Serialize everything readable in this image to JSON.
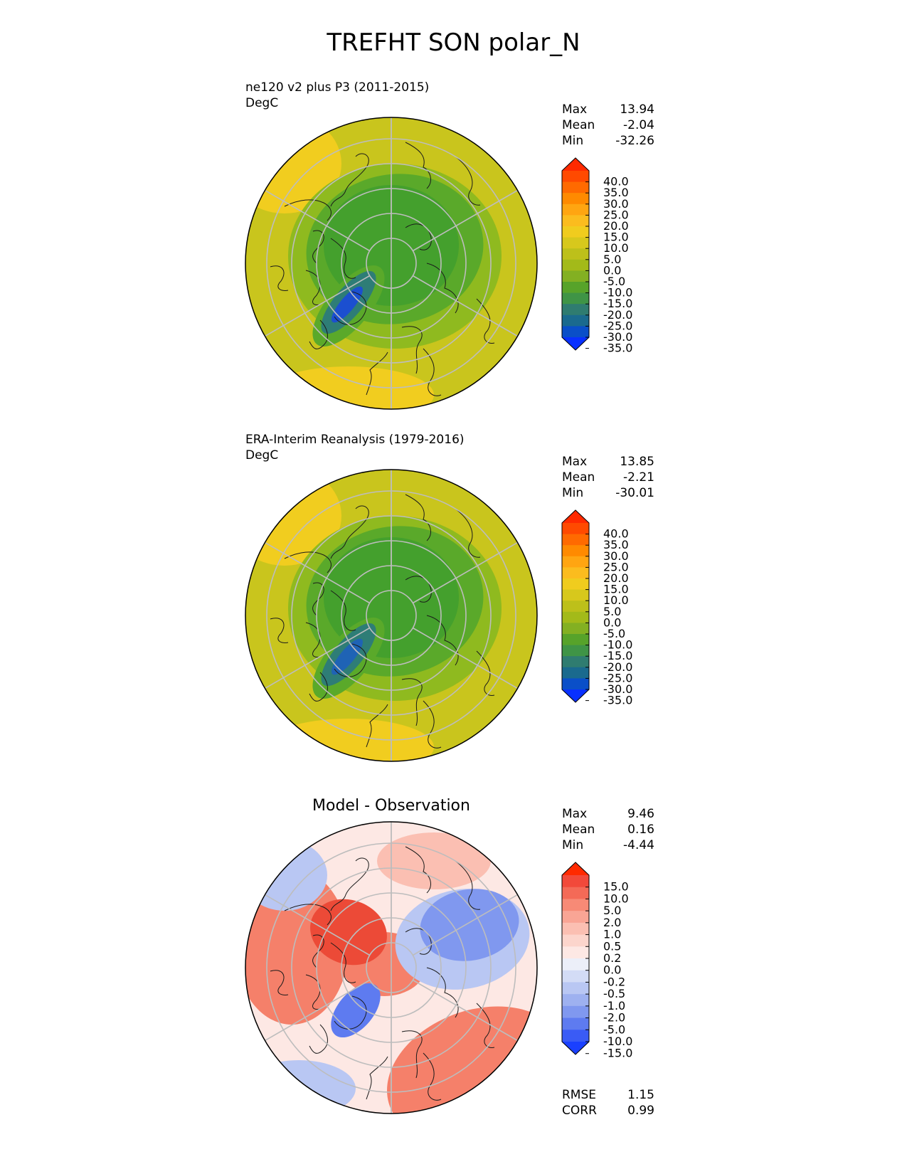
{
  "figure": {
    "title": "TREFHT SON polar_N"
  },
  "chart_data": [
    {
      "type": "heatmap",
      "projection": "north polar stereographic",
      "title": "ne120 v2 plus P3 (2011-2015)",
      "units": "DegC",
      "stats": {
        "max_label": "Max",
        "max": "13.94",
        "mean_label": "Mean",
        "mean": "-2.04",
        "min_label": "Min",
        "min": "-32.26"
      },
      "colorbar": {
        "ticks": [
          "40.0",
          "35.0",
          "30.0",
          "25.0",
          "20.0",
          "15.0",
          "10.0",
          "5.0",
          "0.0",
          "-5.0",
          "-10.0",
          "-15.0",
          "-20.0",
          "-25.0",
          "-30.0",
          "-35.0"
        ],
        "colors": [
          "#ff2a00",
          "#ff4a00",
          "#ff6a00",
          "#ff8a00",
          "#ffa511",
          "#fbbc1e",
          "#f0cc1e",
          "#d7c81c",
          "#bdc01a",
          "#a3ba19",
          "#83b022",
          "#57a32a",
          "#3f9446",
          "#2f7c70",
          "#1a6a8e",
          "#0a4fc8",
          "#0830ff"
        ]
      },
      "field_colors": {
        "warm": "#f1cd1f",
        "mid": "#c9c51d",
        "cool": "#8fba1f",
        "cold": "#5aa92a",
        "colder": "#44a02d",
        "deep": "#2e7d76",
        "deepest": "#1b4fd0"
      }
    },
    {
      "type": "heatmap",
      "projection": "north polar stereographic",
      "title": "ERA-Interim Reanalysis (1979-2016)",
      "units": "DegC",
      "stats": {
        "max_label": "Max",
        "max": "13.85",
        "mean_label": "Mean",
        "mean": "-2.21",
        "min_label": "Min",
        "min": "-30.01"
      },
      "colorbar": {
        "ticks": [
          "40.0",
          "35.0",
          "30.0",
          "25.0",
          "20.0",
          "15.0",
          "10.0",
          "5.0",
          "0.0",
          "-5.0",
          "-10.0",
          "-15.0",
          "-20.0",
          "-25.0",
          "-30.0",
          "-35.0"
        ],
        "colors": [
          "#ff2a00",
          "#ff4a00",
          "#ff6a00",
          "#ff8a00",
          "#ffa511",
          "#fbbc1e",
          "#f0cc1e",
          "#d7c81c",
          "#bdc01a",
          "#a3ba19",
          "#83b022",
          "#57a32a",
          "#3f9446",
          "#2f7c70",
          "#1a6a8e",
          "#0a4fc8",
          "#0830ff"
        ]
      },
      "field_colors": {
        "warm": "#f1cd1f",
        "mid": "#c9c51d",
        "cool": "#8fba1f",
        "cold": "#5aa92a",
        "colder": "#44a02d",
        "deep": "#2e7d76",
        "deepest": "#1f63b5"
      }
    },
    {
      "type": "heatmap",
      "projection": "north polar stereographic",
      "title": "Model - Observation",
      "stats": {
        "max_label": "Max",
        "max": "9.46",
        "mean_label": "Mean",
        "mean": "0.16",
        "min_label": "Min",
        "min": "-4.44"
      },
      "metrics": {
        "rmse_label": "RMSE",
        "rmse": "1.15",
        "corr_label": "CORR",
        "corr": "0.99"
      },
      "colorbar": {
        "ticks": [
          "15.0",
          "10.0",
          "5.0",
          "2.0",
          "1.0",
          "0.5",
          "0.2",
          "0.0",
          "-0.2",
          "-0.5",
          "-1.0",
          "-2.0",
          "-5.0",
          "-10.0",
          "-15.0"
        ],
        "colors": [
          "#ff2a00",
          "#f2493a",
          "#f46a57",
          "#f78a76",
          "#f9a595",
          "#fbbfb2",
          "#fcd5cc",
          "#fde8e4",
          "#eceff9",
          "#d3dcf6",
          "#b9c7f3",
          "#9eb1f0",
          "#8098ef",
          "#5e7bf0",
          "#3a5bf5",
          "#1a40ff"
        ]
      },
      "field_colors": {
        "warm": "#f5806a",
        "mid": "#fbbfb2",
        "light": "#fde8e4",
        "cool": "#b9c7f3",
        "colder": "#8098ef",
        "deep": "#5e7bf0",
        "hot": "#ec4a37"
      }
    }
  ]
}
